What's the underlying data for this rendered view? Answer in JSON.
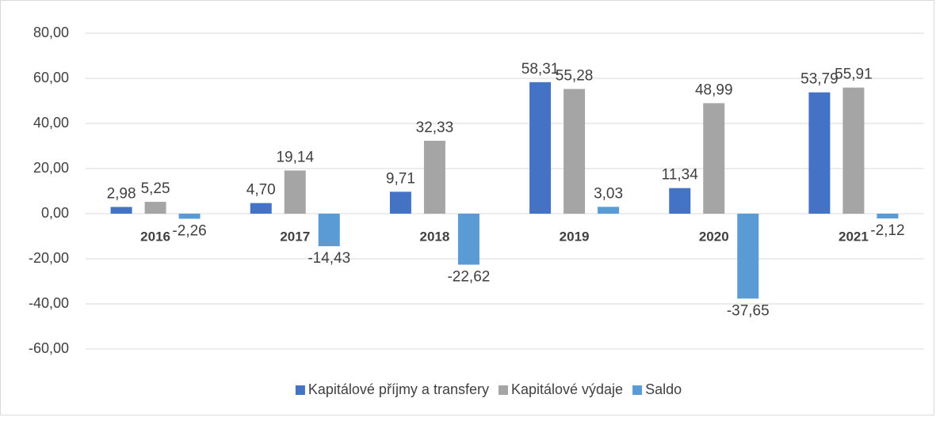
{
  "chart_data": {
    "type": "bar",
    "categories": [
      "2016",
      "2017",
      "2018",
      "2019",
      "2020",
      "2021"
    ],
    "series": [
      {
        "name": "Kapitálové příjmy a transfery",
        "color": "#4472c4",
        "values": [
          2.98,
          4.7,
          9.71,
          58.31,
          11.34,
          53.79
        ],
        "value_labels": [
          "2,98",
          "4,70",
          "9,71",
          "58,31",
          "11,34",
          "53,79"
        ]
      },
      {
        "name": "Kapitálové výdaje",
        "color": "#a5a5a5",
        "values": [
          5.25,
          19.14,
          32.33,
          55.28,
          48.99,
          55.91
        ],
        "value_labels": [
          "5,25",
          "19,14",
          "32,33",
          "55,28",
          "48,99",
          "55,91"
        ]
      },
      {
        "name": "Saldo",
        "color": "#5b9bd5",
        "values": [
          -2.26,
          -14.43,
          -22.62,
          3.03,
          -37.65,
          -2.12
        ],
        "value_labels": [
          "-2,26",
          "-14,43",
          "-22,62",
          "3,03",
          "-37,65",
          "-2,12"
        ]
      }
    ],
    "ylim": [
      -60,
      80
    ],
    "yticks": [
      {
        "value": -60,
        "label": "-60,00"
      },
      {
        "value": -40,
        "label": "-40,00"
      },
      {
        "value": -20,
        "label": "-20,00"
      },
      {
        "value": 0,
        "label": "0,00"
      },
      {
        "value": 20,
        "label": "20,00"
      },
      {
        "value": 40,
        "label": "40,00"
      },
      {
        "value": 60,
        "label": "60,00"
      },
      {
        "value": 80,
        "label": "80,00"
      }
    ],
    "grid": true,
    "legend": "bottom"
  }
}
